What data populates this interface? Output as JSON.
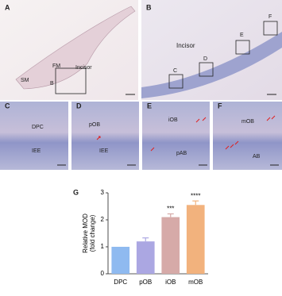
{
  "panels": [
    {
      "label": "A",
      "texts": [
        "SM",
        "FM",
        "B",
        "Incisor"
      ]
    },
    {
      "label": "B",
      "texts": [
        "Incisor",
        "C",
        "D",
        "E",
        "F"
      ]
    },
    {
      "label": "C",
      "texts": [
        "DPC",
        "IEE"
      ]
    },
    {
      "label": "D",
      "texts": [
        "pOB",
        "IEE"
      ]
    },
    {
      "label": "E",
      "texts": [
        "iOB",
        "pAB"
      ]
    },
    {
      "label": "F",
      "texts": [
        "mOB",
        "AB"
      ]
    }
  ],
  "chart_data": {
    "type": "bar",
    "panel_label": "G",
    "ylabel": [
      "Relative MOD",
      "(fold change)"
    ],
    "categories": [
      "DPC",
      "pOB",
      "iOB",
      "mOB"
    ],
    "values": [
      1.0,
      1.2,
      2.1,
      2.55
    ],
    "errors": [
      null,
      0.13,
      0.12,
      0.15
    ],
    "colors": [
      "#8fbaf0",
      "#aba7e2",
      "#d6aaa8",
      "#f2b27d"
    ],
    "value_annotations": [
      null,
      null,
      "***",
      "****"
    ],
    "ylim": [
      0,
      3
    ],
    "yticks": [
      0,
      1,
      2,
      3
    ]
  }
}
